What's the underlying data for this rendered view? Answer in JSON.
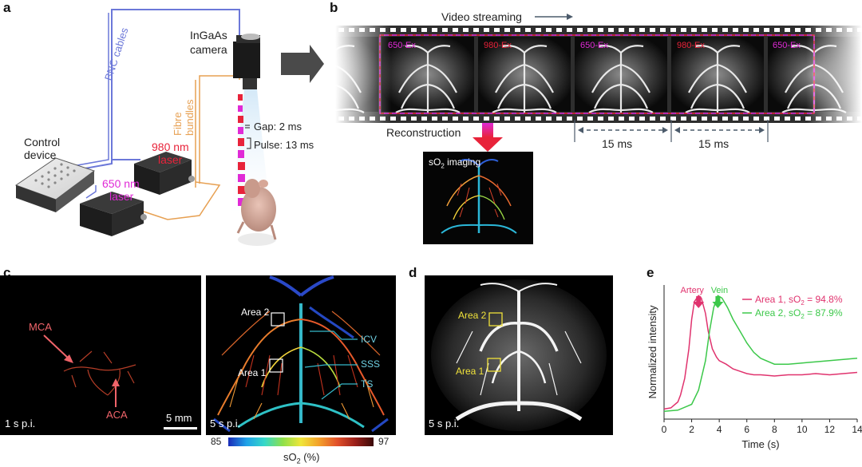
{
  "panel_letters": {
    "a": "a",
    "b": "b",
    "c": "c",
    "d": "d",
    "e": "e"
  },
  "panel_a": {
    "bnc": "BNC cables",
    "camera_line1": "InGaAs",
    "camera_line2": "camera",
    "fibre_line1": "Fibre",
    "fibre_line2": "bundles",
    "control_line1": "Control",
    "control_line2": "device",
    "laser980_line1": "980 nm",
    "laser980_line2": "laser",
    "laser650_line1": "650 nm",
    "laser650_line2": "laser",
    "gap": "Gap: 2 ms",
    "pulse": "Pulse: 13 ms",
    "colors": {
      "bnc": "#6c78d9",
      "fibre": "#e7a052",
      "red": "#e8233a",
      "magenta": "#e02ad6"
    }
  },
  "panel_b": {
    "video": "Video streaming",
    "frames": [
      "650-Ex",
      "980-Ex",
      "650-Ex",
      "980-Ex",
      "650-Ex"
    ],
    "reconstruction": "Reconstruction",
    "so2_prefix": "sO",
    "so2_sub": "2",
    "so2_suffix": " imaging",
    "interval1": "15 ms",
    "interval2": "15 ms"
  },
  "panel_c": {
    "mca": "MCA",
    "aca": "ACA",
    "time1": "1 s p.i.",
    "scale": "5 mm",
    "time2": "5 s p.i.",
    "area2": "Area 2",
    "area1": "Area 1",
    "icv": "ICV",
    "sss": "SSS",
    "ts": "TS",
    "cbar_min": "85",
    "cbar_max": "97",
    "cbar_label_prefix": "sO",
    "cbar_label_sub": "2",
    "cbar_label_suffix": " (%)"
  },
  "panel_d": {
    "area2": "Area 2",
    "area1": "Area 1",
    "time": "5 s p.i."
  },
  "chart_data": {
    "type": "line",
    "xlabel": "Time (s)",
    "ylabel": "Normalized intensity",
    "xlim": [
      0,
      14
    ],
    "xticks": [
      "0",
      "2",
      "4",
      "6",
      "8",
      "10",
      "12",
      "14"
    ],
    "annotations": [
      "Artery",
      "Vein"
    ],
    "series": [
      {
        "name": "Area 1, sO2 = 94.8%",
        "legend_prefix": "Area 1, sO",
        "legend_sub": "2",
        "legend_suffix": " = 94.8%",
        "color": "#e0336e",
        "x": [
          0,
          0.5,
          1,
          1.2,
          1.5,
          1.8,
          2.0,
          2.2,
          2.5,
          2.7,
          3.0,
          3.2,
          3.5,
          3.8,
          4.0,
          4.5,
          5.0,
          5.5,
          6.0,
          6.5,
          7.0,
          8.0,
          9.0,
          10.0,
          11.0,
          12.0,
          13.0,
          14.0
        ],
        "y": [
          0.04,
          0.05,
          0.1,
          0.16,
          0.3,
          0.55,
          0.8,
          0.95,
          1.0,
          0.98,
          0.85,
          0.7,
          0.55,
          0.48,
          0.45,
          0.42,
          0.38,
          0.36,
          0.34,
          0.33,
          0.33,
          0.32,
          0.33,
          0.33,
          0.34,
          0.33,
          0.34,
          0.35
        ]
      },
      {
        "name": "Area 2, sO2 = 87.9%",
        "legend_prefix": "Area 2, sO",
        "legend_sub": "2",
        "legend_suffix": " = 87.9%",
        "color": "#3cc84a",
        "x": [
          0,
          1.0,
          2.0,
          2.5,
          3.0,
          3.3,
          3.6,
          3.9,
          4.2,
          4.6,
          5.0,
          5.5,
          6.0,
          6.5,
          7.0,
          8.0,
          9.0,
          10.0,
          11.0,
          12.0,
          13.0,
          14.0
        ],
        "y": [
          0.02,
          0.03,
          0.08,
          0.2,
          0.45,
          0.7,
          0.9,
          1.0,
          0.98,
          0.9,
          0.8,
          0.7,
          0.6,
          0.52,
          0.47,
          0.42,
          0.42,
          0.43,
          0.44,
          0.45,
          0.46,
          0.47
        ]
      }
    ]
  }
}
